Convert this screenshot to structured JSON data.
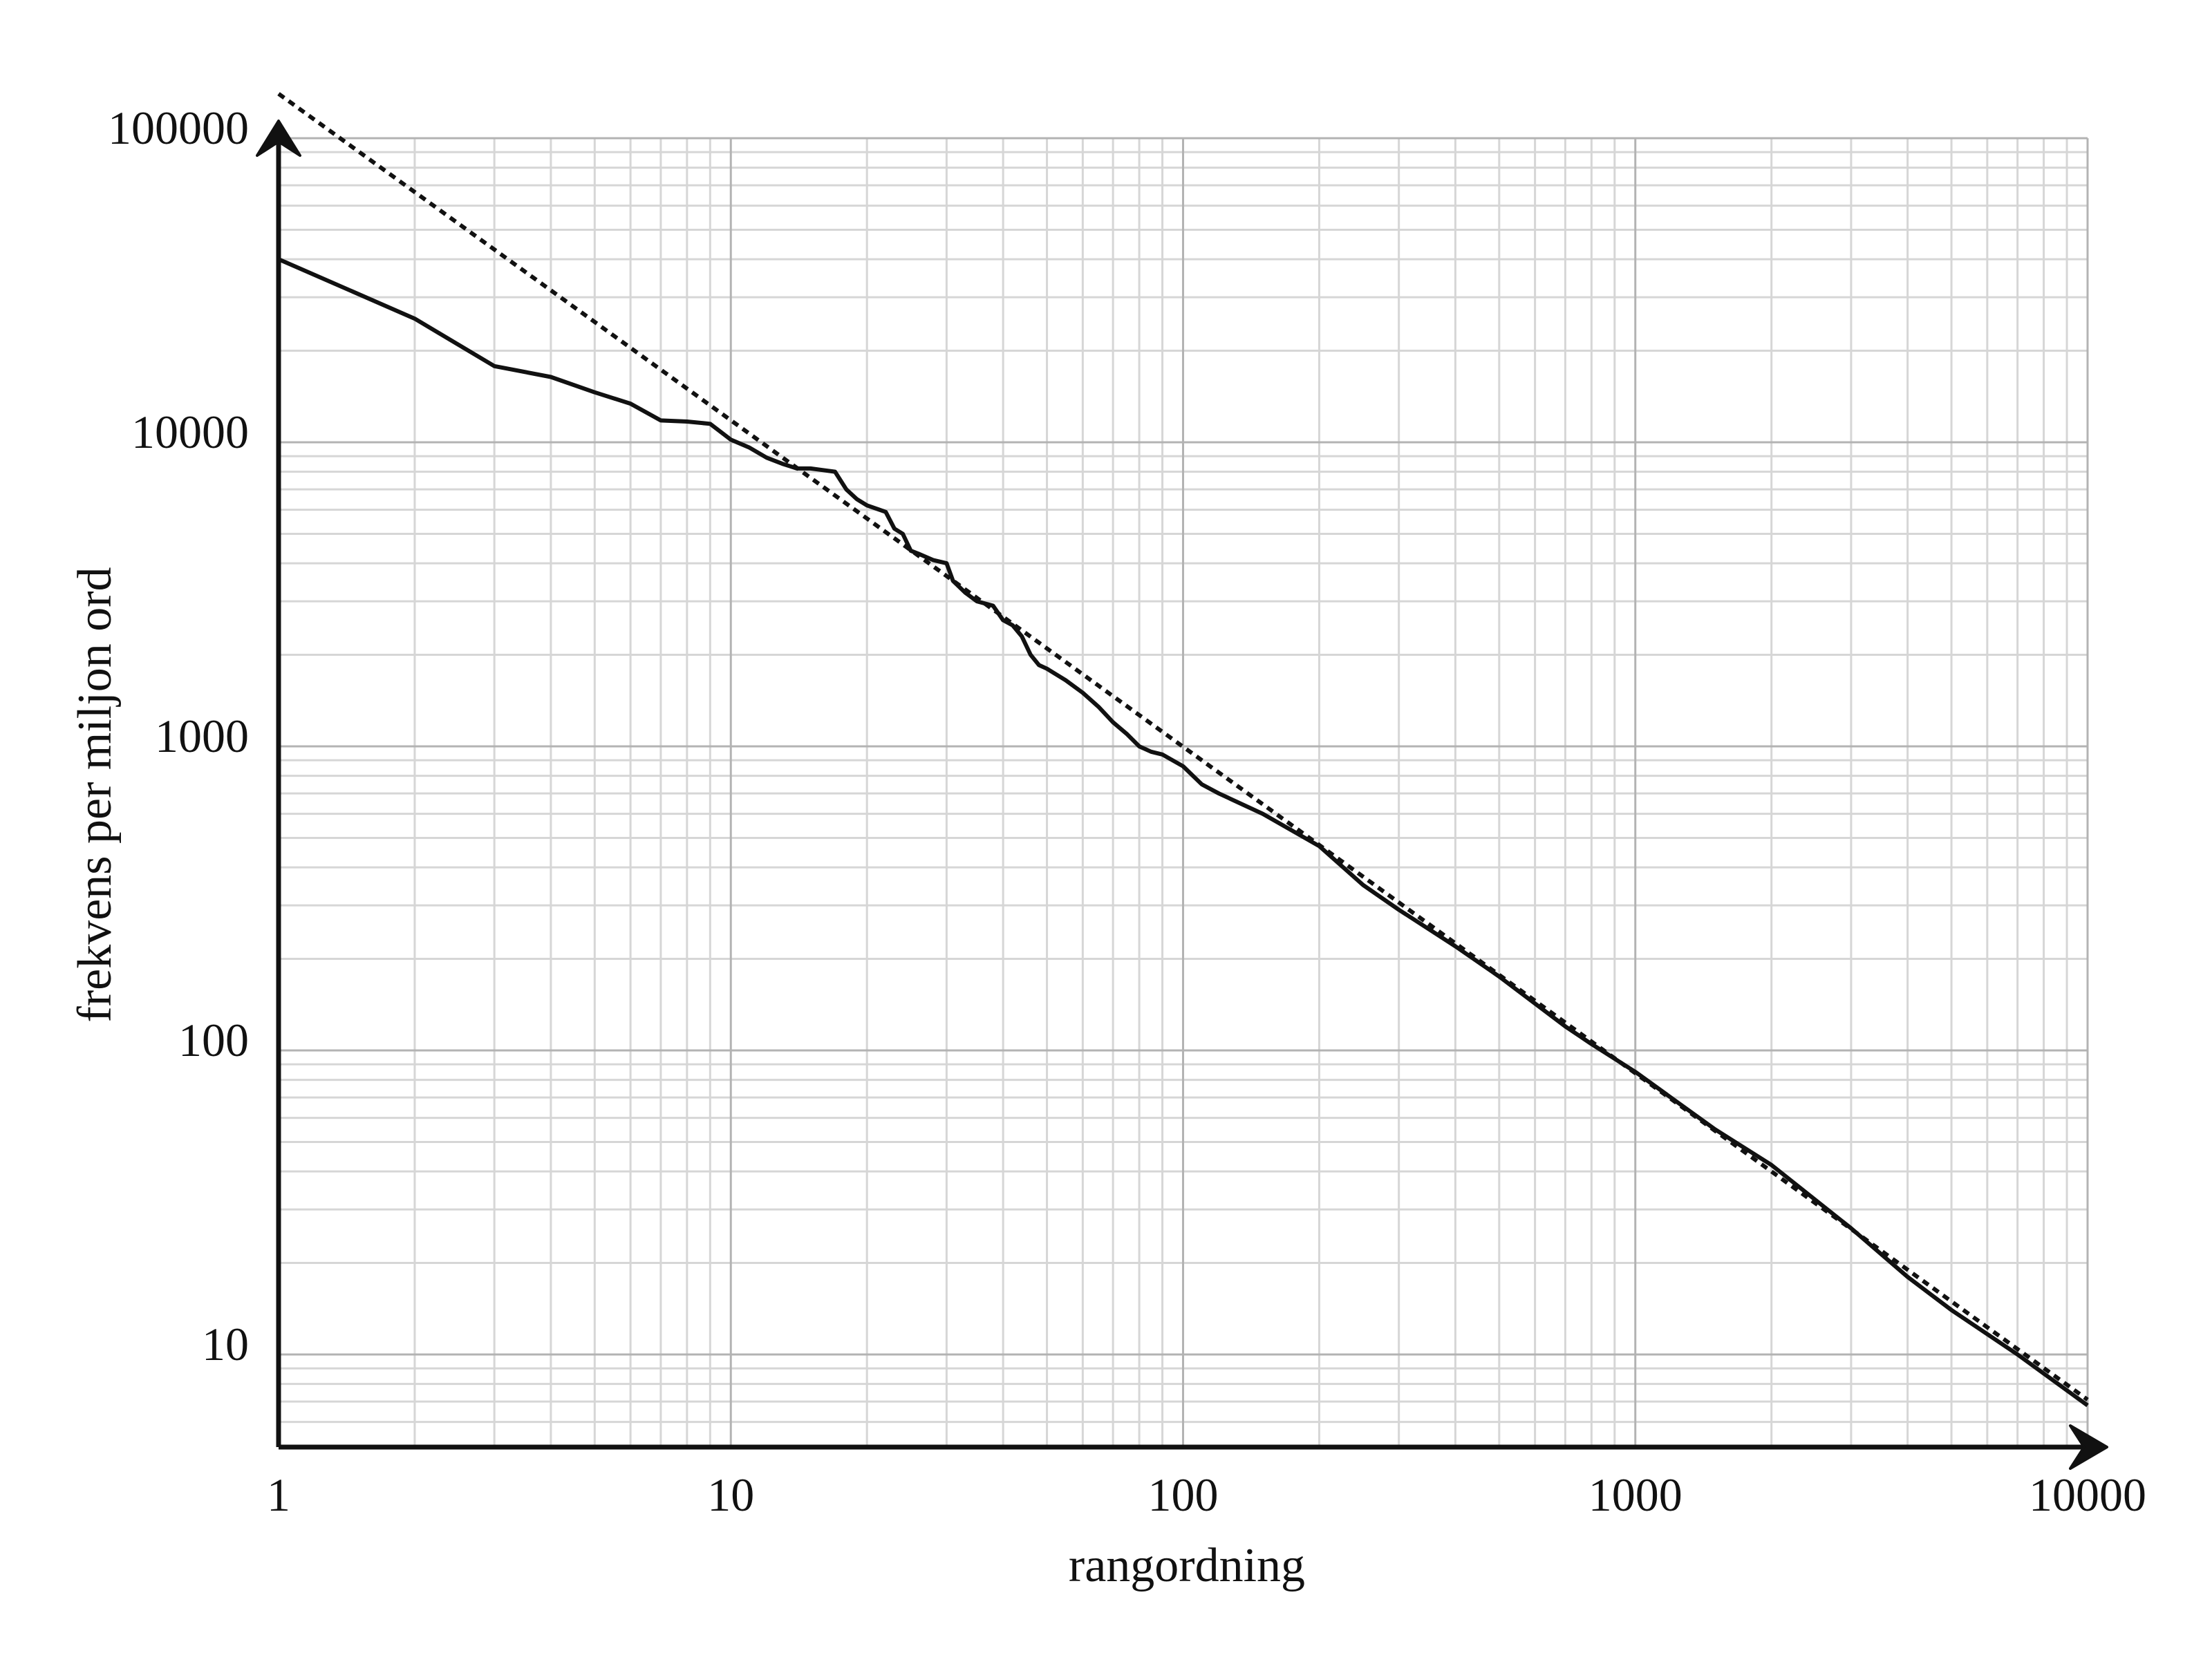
{
  "chart_data": {
    "type": "line",
    "xscale": "log",
    "yscale": "log",
    "xlabel": "rangordning",
    "ylabel": "frekvens per miljon ord",
    "xlim": [
      1,
      10000
    ],
    "ylim": [
      5,
      100000
    ],
    "x_ticks": [
      "1",
      "10",
      "100",
      "1000",
      "10000"
    ],
    "y_ticks": [
      "10",
      "100",
      "1000",
      "10000",
      "100000"
    ],
    "grid": true,
    "colors": {
      "line": "#111111",
      "grid_major": "#b3b3b3",
      "grid_minor": "#d6d6d6",
      "axis": "#111111"
    },
    "series": [
      {
        "style": "solid",
        "x": [
          1,
          2,
          3,
          4,
          5,
          6,
          7,
          8,
          9,
          10,
          11,
          12,
          13,
          14,
          15,
          16,
          17,
          18,
          19,
          20,
          22,
          23,
          24,
          25,
          26,
          28,
          30,
          31,
          33,
          35,
          38,
          40,
          42,
          44,
          46,
          48,
          50,
          55,
          60,
          65,
          70,
          75,
          80,
          85,
          90,
          100,
          110,
          120,
          150,
          200,
          250,
          300,
          400,
          500,
          700,
          800,
          1000,
          1500,
          2000,
          3000,
          4000,
          5000,
          7000,
          10000
        ],
        "y": [
          40000,
          25500,
          17800,
          16400,
          14600,
          13400,
          11800,
          11700,
          11500,
          10200,
          9600,
          8900,
          8500,
          8200,
          8200,
          8100,
          8000,
          7000,
          6500,
          6200,
          5900,
          5200,
          5000,
          4400,
          4300,
          4100,
          4000,
          3500,
          3200,
          3000,
          2900,
          2600,
          2500,
          2300,
          2000,
          1850,
          1800,
          1650,
          1500,
          1350,
          1200,
          1100,
          1000,
          960,
          940,
          860,
          750,
          700,
          600,
          470,
          350,
          290,
          220,
          175,
          120,
          105,
          85,
          55,
          42,
          26,
          18,
          14,
          10,
          6.8
        ]
      },
      {
        "style": "dotted",
        "x": [
          1,
          10000
        ],
        "y": [
          140000,
          7.1
        ]
      }
    ]
  }
}
